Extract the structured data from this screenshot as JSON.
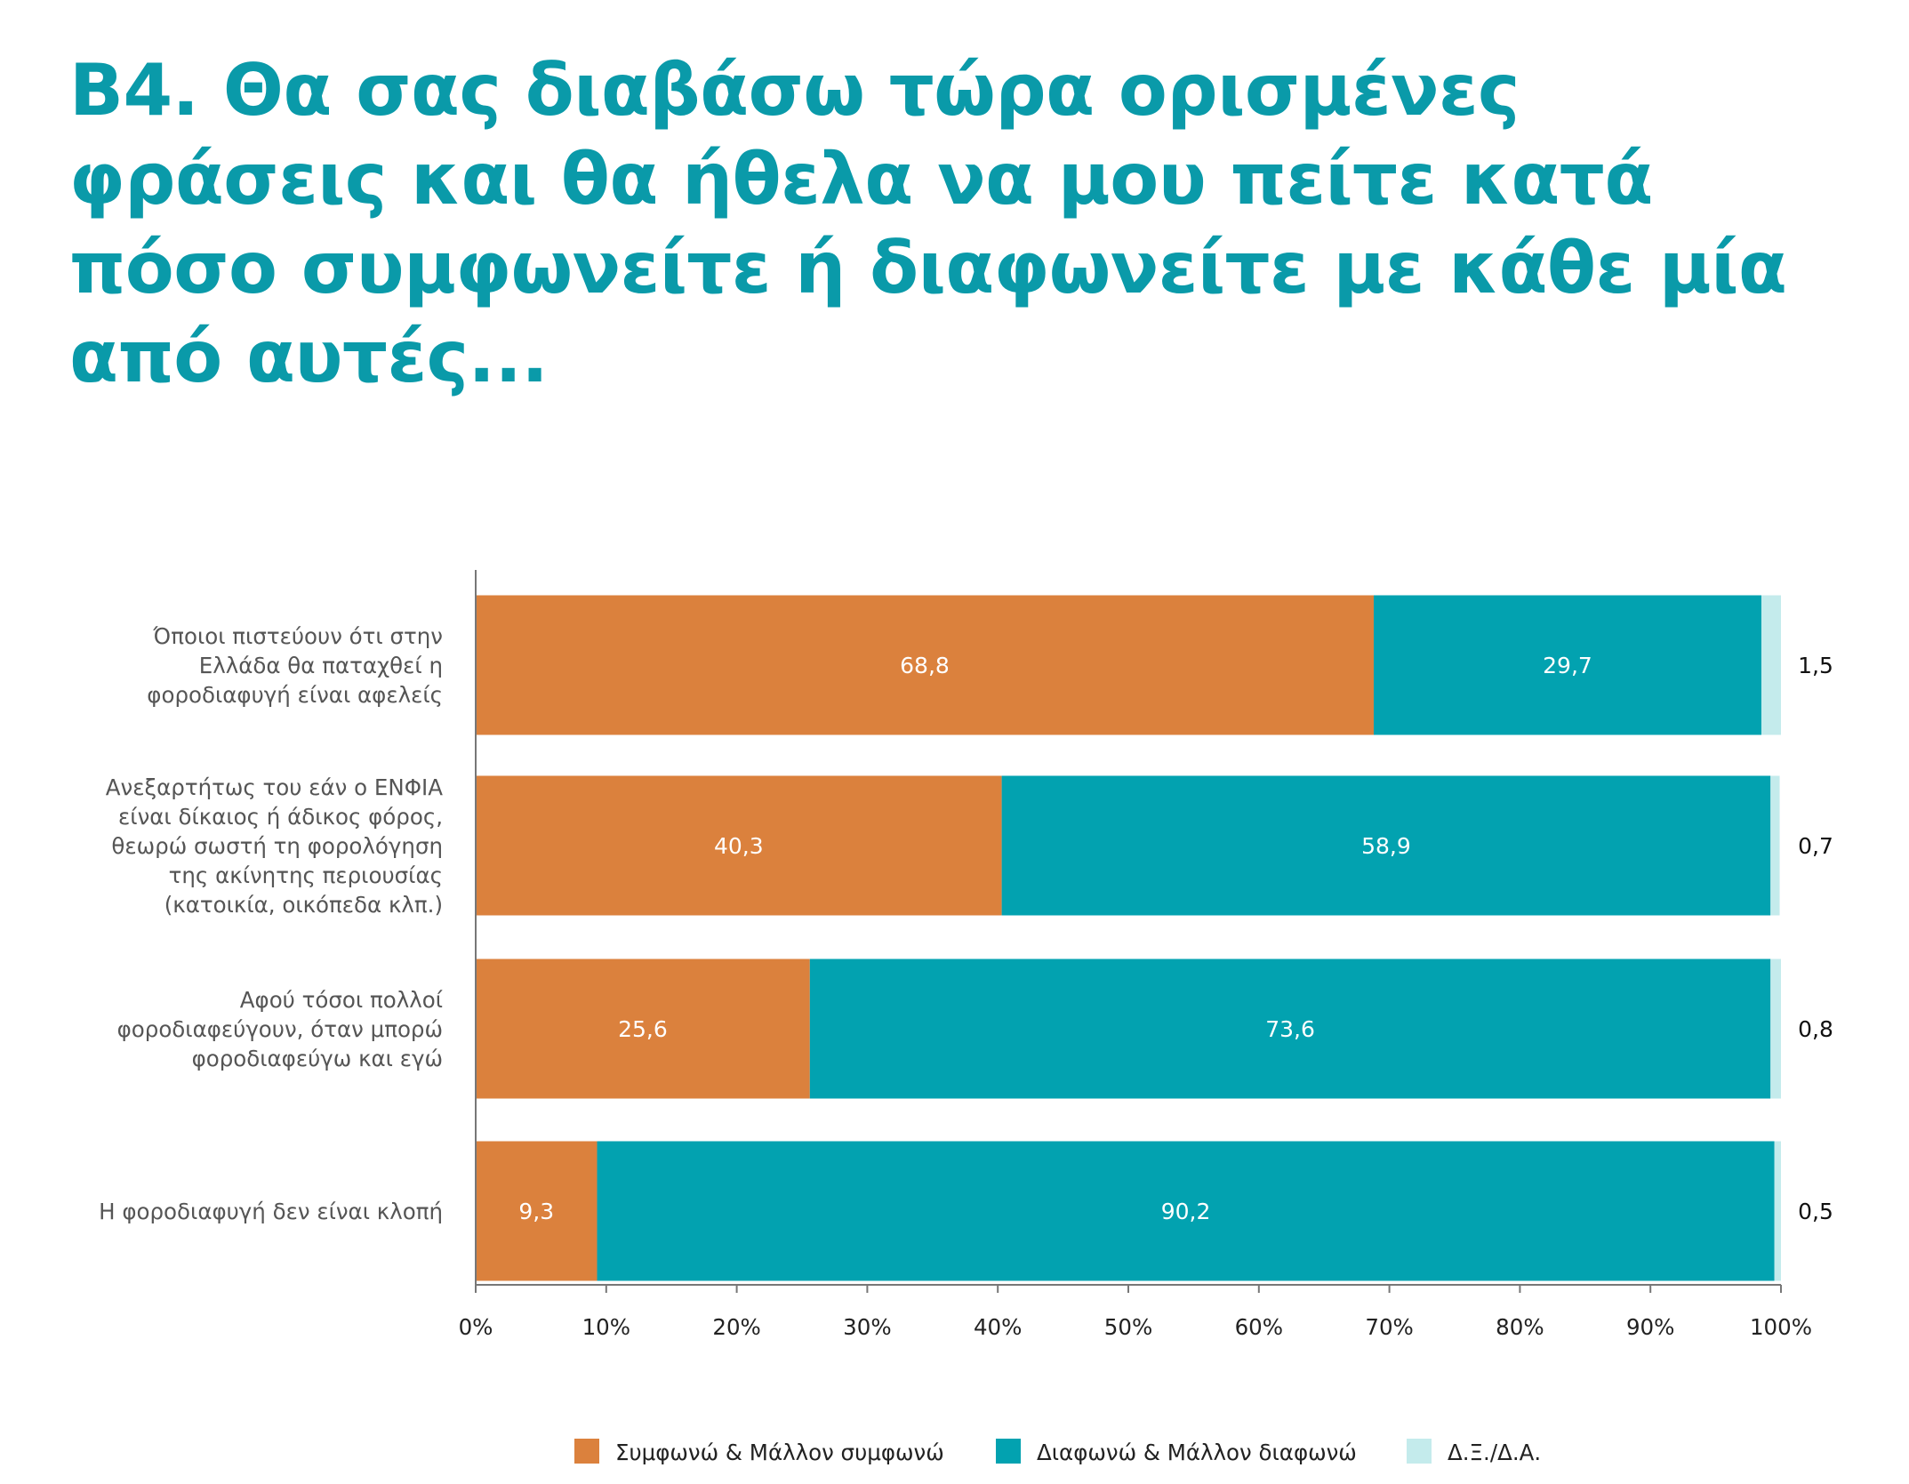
{
  "title_lines": [
    "B4. Θα σας διαβάσω τώρα ορισμένες",
    "φράσεις και θα ήθελα να μου πείτε κατά",
    "πόσο συμφωνείτε ή διαφωνείτε με κάθε μία",
    "από αυτές..."
  ],
  "colors": {
    "title": "#0a9aa9",
    "agree": "#db813d",
    "disagree": "#02a2b0",
    "dk": "#c4ebec",
    "axis": "#777777"
  },
  "chart_data": {
    "type": "bar",
    "orientation": "horizontal",
    "stacked": true,
    "title": "B4. Θα σας διαβάσω τώρα ορισμένες φράσεις και θα ήθελα να μου πείτε κατά πόσο συμφωνείτε ή διαφωνείτε με κάθε μία από αυτές...",
    "categories": [
      [
        "Όποιοι πιστεύουν ότι στην",
        "Ελλάδα θα παταχθεί η",
        "φοροδιαφυγή είναι αφελείς"
      ],
      [
        "Ανεξαρτήτως του εάν ο ΕΝΦΙΑ",
        "είναι δίκαιος ή άδικος φόρος,",
        "θεωρώ σωστή τη φορολόγηση",
        "της ακίνητης περιουσίας",
        "(κατοικία, οικόπεδα κλπ.)"
      ],
      [
        "Αφού τόσοι πολλοί",
        "φοροδιαφεύγουν, όταν μπορώ",
        "φοροδιαφεύγω και εγώ"
      ],
      [
        "Η φοροδιαφυγή δεν είναι κλοπή"
      ]
    ],
    "series": [
      {
        "name": "Συμφωνώ & Μάλλον συμφωνώ",
        "values": [
          68.8,
          40.3,
          25.6,
          9.3
        ],
        "labels": [
          "68,8",
          "40,3",
          "25,6",
          "9,3"
        ]
      },
      {
        "name": "Διαφωνώ & Μάλλον διαφωνώ",
        "values": [
          29.7,
          58.9,
          73.6,
          90.2
        ],
        "labels": [
          "29,7",
          "58,9",
          "73,6",
          "90,2"
        ]
      },
      {
        "name": "Δ.Ξ./Δ.Α.",
        "values": [
          1.5,
          0.7,
          0.8,
          0.5
        ],
        "labels": [
          "1,5",
          "0,7",
          "0,8",
          "0,5"
        ]
      }
    ],
    "xlim": [
      0,
      100
    ],
    "xticks": [
      "0%",
      "10%",
      "20%",
      "30%",
      "40%",
      "50%",
      "60%",
      "70%",
      "80%",
      "90%",
      "100%"
    ],
    "grid": false,
    "legend_position": "bottom-center"
  }
}
